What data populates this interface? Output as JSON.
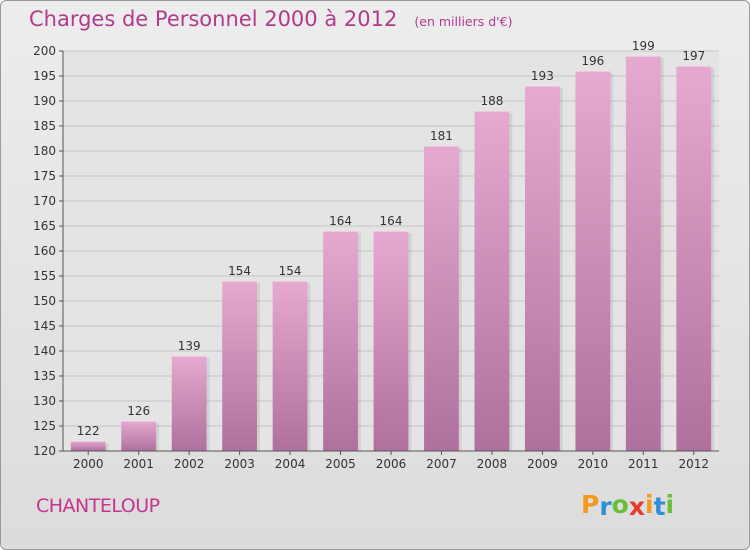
{
  "header": {
    "title": "Charges de Personnel 2000 à 2012",
    "unit": "(en milliers d'€)"
  },
  "footer": {
    "commune": "CHANTELOUP",
    "brand": {
      "letters": [
        "P",
        "r",
        "o",
        "x",
        "i",
        "t",
        "i"
      ],
      "colors": [
        "#f39a1e",
        "#2e8fd6",
        "#6abf3a",
        "#e63b2e",
        "#f39a1e",
        "#2e8fd6",
        "#6abf3a"
      ]
    }
  },
  "colors": {
    "bar_light": "#e6a9cf",
    "bar_dark": "#b0709e",
    "label": "#333333",
    "title": "#b23a8a",
    "grid": "#c4c4c4"
  },
  "chart_data": {
    "type": "bar",
    "title": "Charges de Personnel 2000 à 2012",
    "subtitle": "(en milliers d'€)",
    "categories": [
      "2000",
      "2001",
      "2002",
      "2003",
      "2004",
      "2005",
      "2006",
      "2007",
      "2008",
      "2009",
      "2010",
      "2011",
      "2012"
    ],
    "values": [
      122,
      126,
      139,
      154,
      154,
      164,
      164,
      181,
      188,
      193,
      196,
      199,
      197
    ],
    "ylim": [
      120,
      200
    ],
    "yticks": [
      120,
      125,
      130,
      135,
      140,
      145,
      150,
      155,
      160,
      165,
      170,
      175,
      180,
      185,
      190,
      195,
      200
    ],
    "grid": true,
    "data_labels": true
  }
}
